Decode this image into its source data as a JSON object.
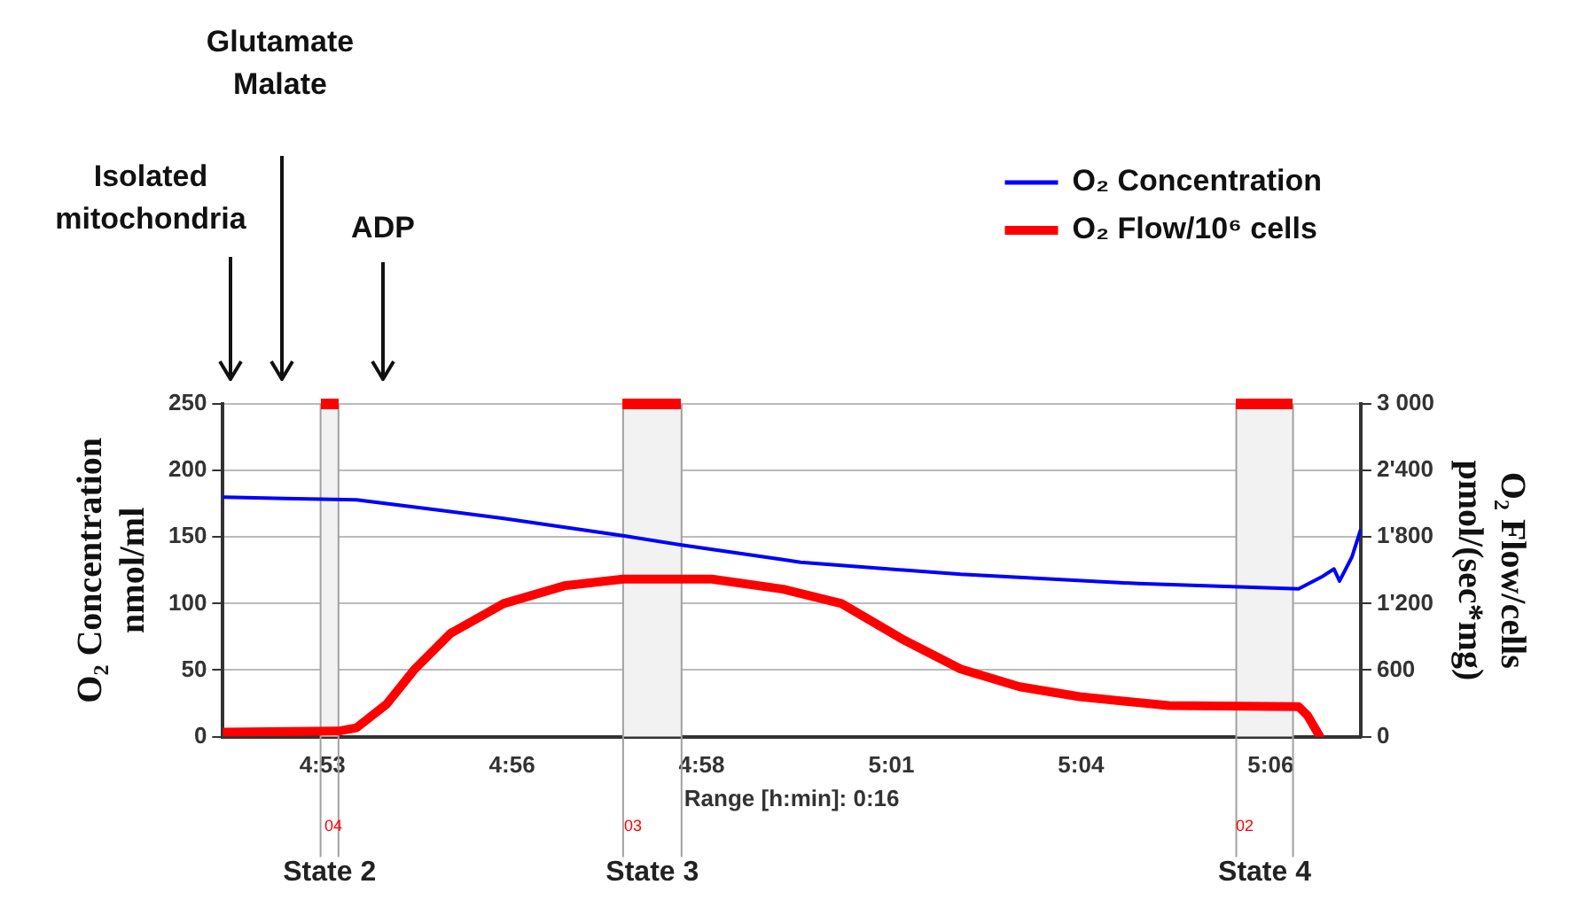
{
  "chart_data": {
    "type": "line",
    "xlabel": "Range [h:min]: 0:16",
    "ylabel": "O₂ Concentration\nnmol/ml",
    "y2label": "O₂ Flow/cells\npmol/(sec*mg)",
    "xlim": [
      4.86,
      5.12667
    ],
    "xticks": [
      {
        "value": 4.88333,
        "label": "4:53"
      },
      {
        "value": 4.92778,
        "label": "4:56"
      },
      {
        "value": 4.97222,
        "label": "4:58"
      },
      {
        "value": 5.01667,
        "label": "5:01"
      },
      {
        "value": 5.06111,
        "label": "5:04"
      },
      {
        "value": 5.10556,
        "label": "5:06"
      }
    ],
    "ylim": [
      0,
      250
    ],
    "yticks": [
      0,
      50,
      100,
      150,
      200,
      250
    ],
    "y2lim": [
      0,
      3000
    ],
    "y2ticks": [
      {
        "value": 0,
        "label": "0"
      },
      {
        "value": 600,
        "label": "600"
      },
      {
        "value": 1200,
        "label": "1'200"
      },
      {
        "value": 1800,
        "label": "1'800"
      },
      {
        "value": 2400,
        "label": "2'400"
      },
      {
        "value": 3000,
        "label": "3 000"
      }
    ],
    "grid": "y",
    "legend": "top right",
    "marker": "none",
    "series": [
      {
        "name": "O₂ Concentration",
        "color": "#0000ff",
        "x": [
          4.86,
          4.8746,
          4.8913,
          4.9038,
          4.9258,
          4.9538,
          4.9675,
          4.9913,
          4.9954,
          5.0329,
          5.0746,
          5.1121,
          5.1175,
          5.1204,
          5.1217,
          5.1246,
          5.1266
        ],
        "values": [
          180,
          179,
          178,
          173,
          164,
          151,
          144,
          133,
          131,
          122,
          115,
          111,
          120,
          126,
          117,
          135,
          155
        ]
      },
      {
        "name": "O₂ Flow/10⁶ cells",
        "color": "#ff0000",
        "axis": "y2",
        "x": [
          4.86,
          4.8871,
          4.8913,
          4.8983,
          4.905,
          4.9133,
          4.9258,
          4.94,
          4.9538,
          4.9746,
          4.9913,
          5.005,
          5.0192,
          5.0329,
          5.0467,
          5.0608,
          5.0817,
          5.1121,
          5.1142,
          5.1171
        ],
        "values": [
          40,
          50,
          80,
          290,
          610,
          930,
          1200,
          1360,
          1420,
          1420,
          1330,
          1200,
          880,
          610,
          450,
          360,
          280,
          270,
          190,
          0
        ]
      }
    ],
    "bands": [
      {
        "axis": "x",
        "from": 4.8829,
        "to": 4.8871,
        "label": "State 2"
      },
      {
        "axis": "x",
        "from": 4.9538,
        "to": 4.9675,
        "label": "State 3"
      },
      {
        "axis": "x",
        "from": 5.0975,
        "to": 5.1108,
        "label": "State 4"
      }
    ],
    "annotations": [
      "Isolated\nmitochondria",
      "Glutamate\nMalate",
      "ADP",
      "04",
      "03",
      "02"
    ]
  }
}
